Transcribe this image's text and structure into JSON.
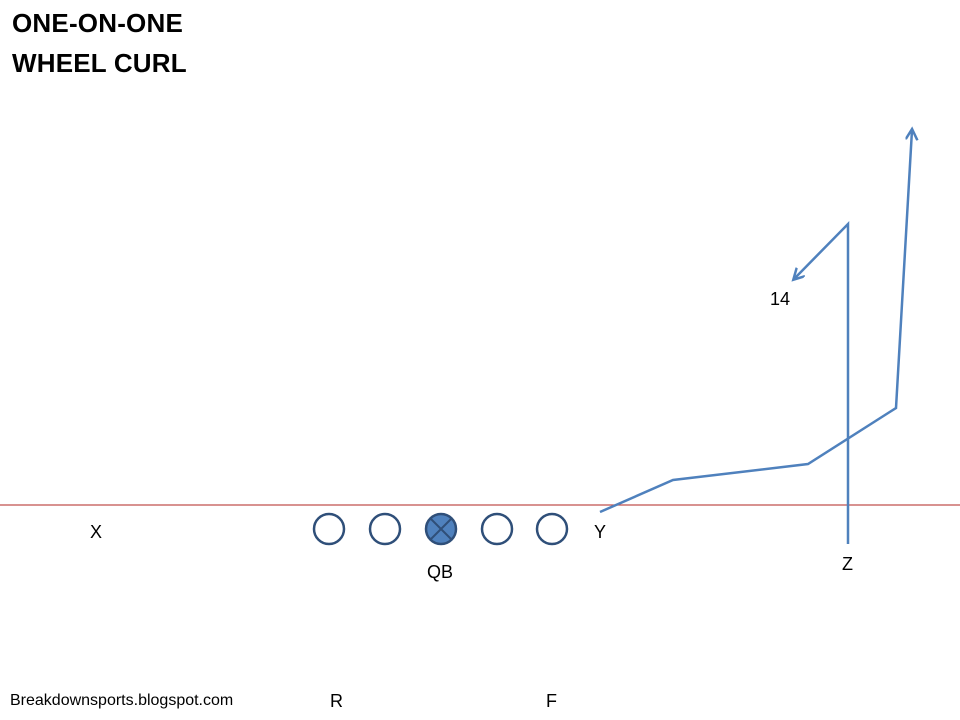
{
  "title": {
    "line1": "ONE-ON-ONE",
    "line2": "WHEEL CURL"
  },
  "players": {
    "x": "X",
    "y": "Y",
    "z": "Z",
    "qb": "QB",
    "r": "R",
    "f": "F"
  },
  "route_numbers": {
    "z_route": "14"
  },
  "footer": "Breakdownsports.blogspot.com",
  "colors": {
    "route": "#4f81bd",
    "line_of_scrimmage": "#c0504d",
    "lineman_stroke": "#2f4f79",
    "qb_fill": "#4f81bd"
  }
}
